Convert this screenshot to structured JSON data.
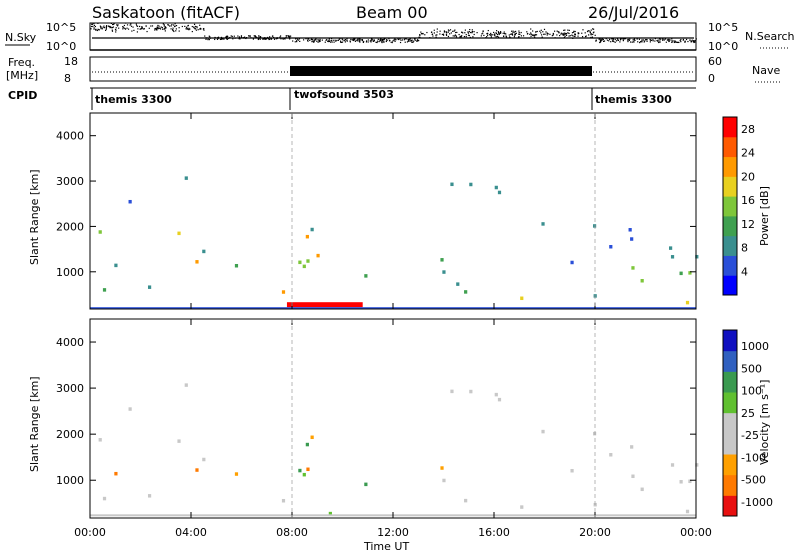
{
  "header": {
    "station": "Saskatoon (fitACF)",
    "beam": "Beam 00",
    "date": "26/Jul/2016"
  },
  "noise_panel": {
    "left_label": "N.Sky",
    "right_label": "N.Search",
    "left_ticks": [
      "10^5",
      "10^0"
    ],
    "right_ticks": [
      "10^5",
      "10^0"
    ]
  },
  "freq_panel": {
    "left_label_top": "Freq.",
    "left_label_bottom": "[MHz]",
    "right_label": "Nave",
    "left_ticks": [
      "18",
      "8"
    ],
    "right_ticks": [
      "60",
      "0"
    ]
  },
  "cpid_panel": {
    "label": "CPID",
    "segments": [
      {
        "name": "themis 3300",
        "start_hour": 0,
        "end_hour": 8
      },
      {
        "name": "twofsound 3503",
        "start_hour": 8,
        "end_hour": 20
      },
      {
        "name": "themis 3300",
        "start_hour": 20,
        "end_hour": 24
      }
    ]
  },
  "colors": {
    "power_scale": [
      "#0000ff",
      "#2a4fd8",
      "#3a8f8f",
      "#3fa050",
      "#7ec63a",
      "#e8d020",
      "#ff9a00",
      "#ff5a00",
      "#ff0000"
    ],
    "velocity_scale": [
      "#e81010",
      "#ff7a00",
      "#ffa000",
      "#c8c8c8",
      "#c8c8c8",
      "#60c030",
      "#3a9a50",
      "#3060c0",
      "#1010c0"
    ]
  },
  "chart_data": [
    {
      "type": "heatmap",
      "name": "power",
      "ylabel": "Slant Range [km]",
      "xlabel": "Time UT",
      "x_ticks": [
        "00:00",
        "04:00",
        "08:00",
        "12:00",
        "16:00",
        "20:00",
        "00:00"
      ],
      "x_tick_hours": [
        0,
        4,
        8,
        12,
        16,
        20,
        24
      ],
      "y_ticks": [
        1000,
        2000,
        3000,
        4000
      ],
      "xlim": [
        0,
        24
      ],
      "ylim": [
        180,
        4500
      ],
      "colorbar": {
        "label": "Power [dB]",
        "ticks": [
          4,
          8,
          12,
          16,
          20,
          24,
          28
        ],
        "range": [
          0,
          30
        ]
      }
    },
    {
      "type": "heatmap",
      "name": "velocity",
      "ylabel": "Slant Range [km]",
      "xlabel": "Time UT",
      "x_ticks": [
        "00:00",
        "04:00",
        "08:00",
        "12:00",
        "16:00",
        "20:00",
        "00:00"
      ],
      "x_tick_hours": [
        0,
        4,
        8,
        12,
        16,
        20,
        24
      ],
      "y_ticks": [
        1000,
        2000,
        3000,
        4000
      ],
      "xlim": [
        0,
        24
      ],
      "ylim": [
        180,
        4500
      ],
      "colorbar": {
        "label": "Velocity [m s⁻¹]",
        "ticks": [
          "1000",
          "500",
          "100",
          "25",
          "-25",
          "-100",
          "-500",
          "-1000"
        ]
      }
    }
  ],
  "bottom_axis": {
    "xlabel": "Time UT"
  }
}
